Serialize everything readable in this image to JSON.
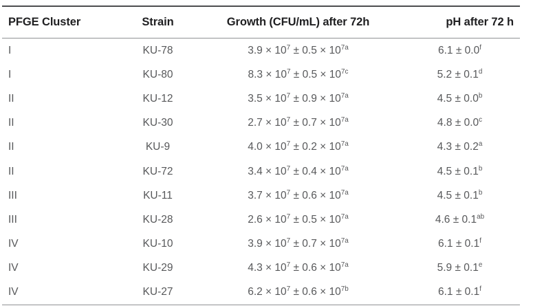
{
  "figure": {
    "background": "#ffffff"
  },
  "colors": {
    "header_text": "#202022",
    "body_text": "#57585a",
    "rule_top": "#4c4d4f",
    "rule_light": "#8f9194"
  },
  "table": {
    "columns": [
      {
        "key": "cluster",
        "label": "PFGE Cluster",
        "align": "left"
      },
      {
        "key": "strain",
        "label": "Strain",
        "align": "center"
      },
      {
        "key": "growth",
        "label": "Growth (CFU/mL) after 72h",
        "align": "center"
      },
      {
        "key": "ph",
        "label": "pH after 72 h",
        "align": "right-header-center-body"
      }
    ],
    "rows": [
      {
        "cluster": "I",
        "strain": "KU-78",
        "growth": "3.9 × 10^{7} ± 0.5 × 10^{7a}",
        "ph": "6.1 ± 0.0^{f}"
      },
      {
        "cluster": "I",
        "strain": "KU-80",
        "growth": "8.3 × 10^{7} ± 0.5 × 10^{7c}",
        "ph": "5.2 ± 0.1^{d}"
      },
      {
        "cluster": "II",
        "strain": "KU-12",
        "growth": "3.5 × 10^{7} ± 0.9 × 10^{7a}",
        "ph": "4.5 ± 0.0^{b}"
      },
      {
        "cluster": "II",
        "strain": "KU-30",
        "growth": "2.7 × 10^{7} ± 0.7 × 10^{7a}",
        "ph": "4.8 ± 0.0^{c}"
      },
      {
        "cluster": "II",
        "strain": "KU-9",
        "growth": "4.0 × 10^{7} ± 0.2 × 10^{7a}",
        "ph": "4.3 ± 0.2^{a}"
      },
      {
        "cluster": "II",
        "strain": "KU-72",
        "growth": "3.4 × 10^{7} ± 0.4 × 10^{7a}",
        "ph": "4.5 ± 0.1^{b}"
      },
      {
        "cluster": "III",
        "strain": "KU-11",
        "growth": "3.7 × 10^{7} ± 0.6 × 10^{7a}",
        "ph": "4.5 ± 0.1^{b}"
      },
      {
        "cluster": "III",
        "strain": "KU-28",
        "growth": "2.6 × 10^{7} ± 0.5 × 10^{7a}",
        "ph": "4.6 ± 0.1^{ab}"
      },
      {
        "cluster": "IV",
        "strain": "KU-10",
        "growth": "3.9 × 10^{7} ± 0.7 × 10^{7a}",
        "ph": "6.1 ± 0.1^{f}"
      },
      {
        "cluster": "IV",
        "strain": "KU-29",
        "growth": "4.3 × 10^{7} ± 0.6 × 10^{7a}",
        "ph": "5.9 ± 0.1^{e}"
      },
      {
        "cluster": "IV",
        "strain": "KU-27",
        "growth": "6.2 × 10^{7} ± 0.6 × 10^{7b}",
        "ph": "6.1 ± 0.1^{f}"
      }
    ]
  }
}
